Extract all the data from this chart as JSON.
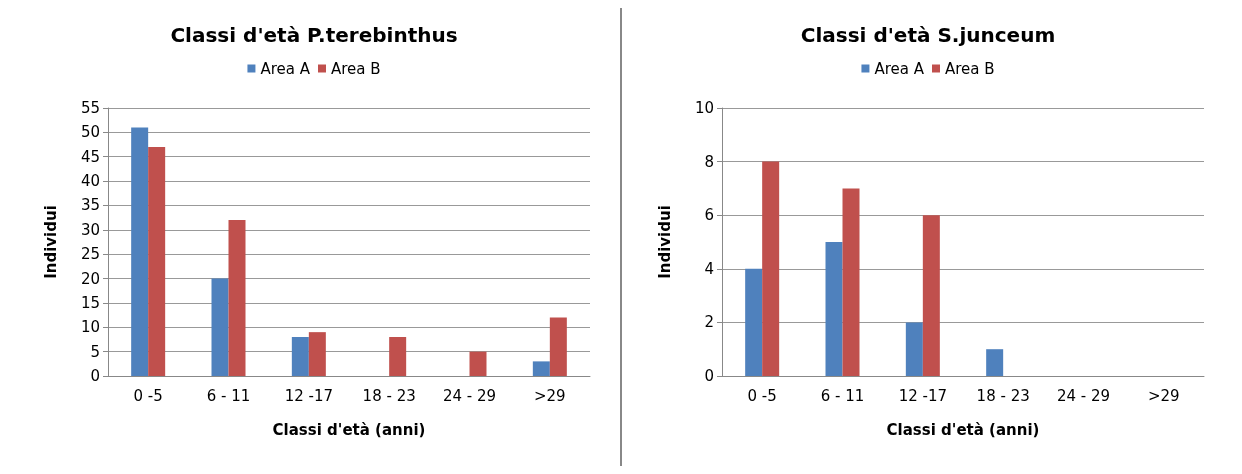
{
  "chart_data": [
    {
      "type": "bar",
      "title": "Classi d'età P.terebinthus",
      "xlabel": "Classi d'età (anni)",
      "ylabel": "Individui",
      "categories": [
        "0 -5",
        "6 - 11",
        "12 -17",
        "18 - 23",
        "24 - 29",
        ">29"
      ],
      "series": [
        {
          "name": "Area A",
          "color": "#4f81bd",
          "values": [
            51,
            20,
            8,
            0,
            0,
            3
          ]
        },
        {
          "name": "Area B",
          "color": "#c0504d",
          "values": [
            47,
            32,
            9,
            8,
            5,
            12
          ]
        }
      ],
      "ylim": [
        0,
        55
      ],
      "yticks": [
        0,
        5,
        10,
        15,
        20,
        25,
        30,
        35,
        40,
        45,
        50,
        55
      ],
      "grid": "y",
      "legend": "top"
    },
    {
      "type": "bar",
      "title": "Classi d'età S.junceum",
      "xlabel": "Classi d'età (anni)",
      "ylabel": "Individui",
      "categories": [
        "0 -5",
        "6 - 11",
        "12 -17",
        "18 - 23",
        "24 - 29",
        ">29"
      ],
      "series": [
        {
          "name": "Area A",
          "color": "#4f81bd",
          "values": [
            4,
            5,
            2,
            1,
            0,
            0
          ]
        },
        {
          "name": "Area B",
          "color": "#c0504d",
          "values": [
            8,
            7,
            6,
            0,
            0,
            0
          ]
        }
      ],
      "ylim": [
        0,
        10
      ],
      "yticks": [
        0,
        2,
        4,
        6,
        8,
        10
      ],
      "grid": "y",
      "legend": "top"
    }
  ]
}
